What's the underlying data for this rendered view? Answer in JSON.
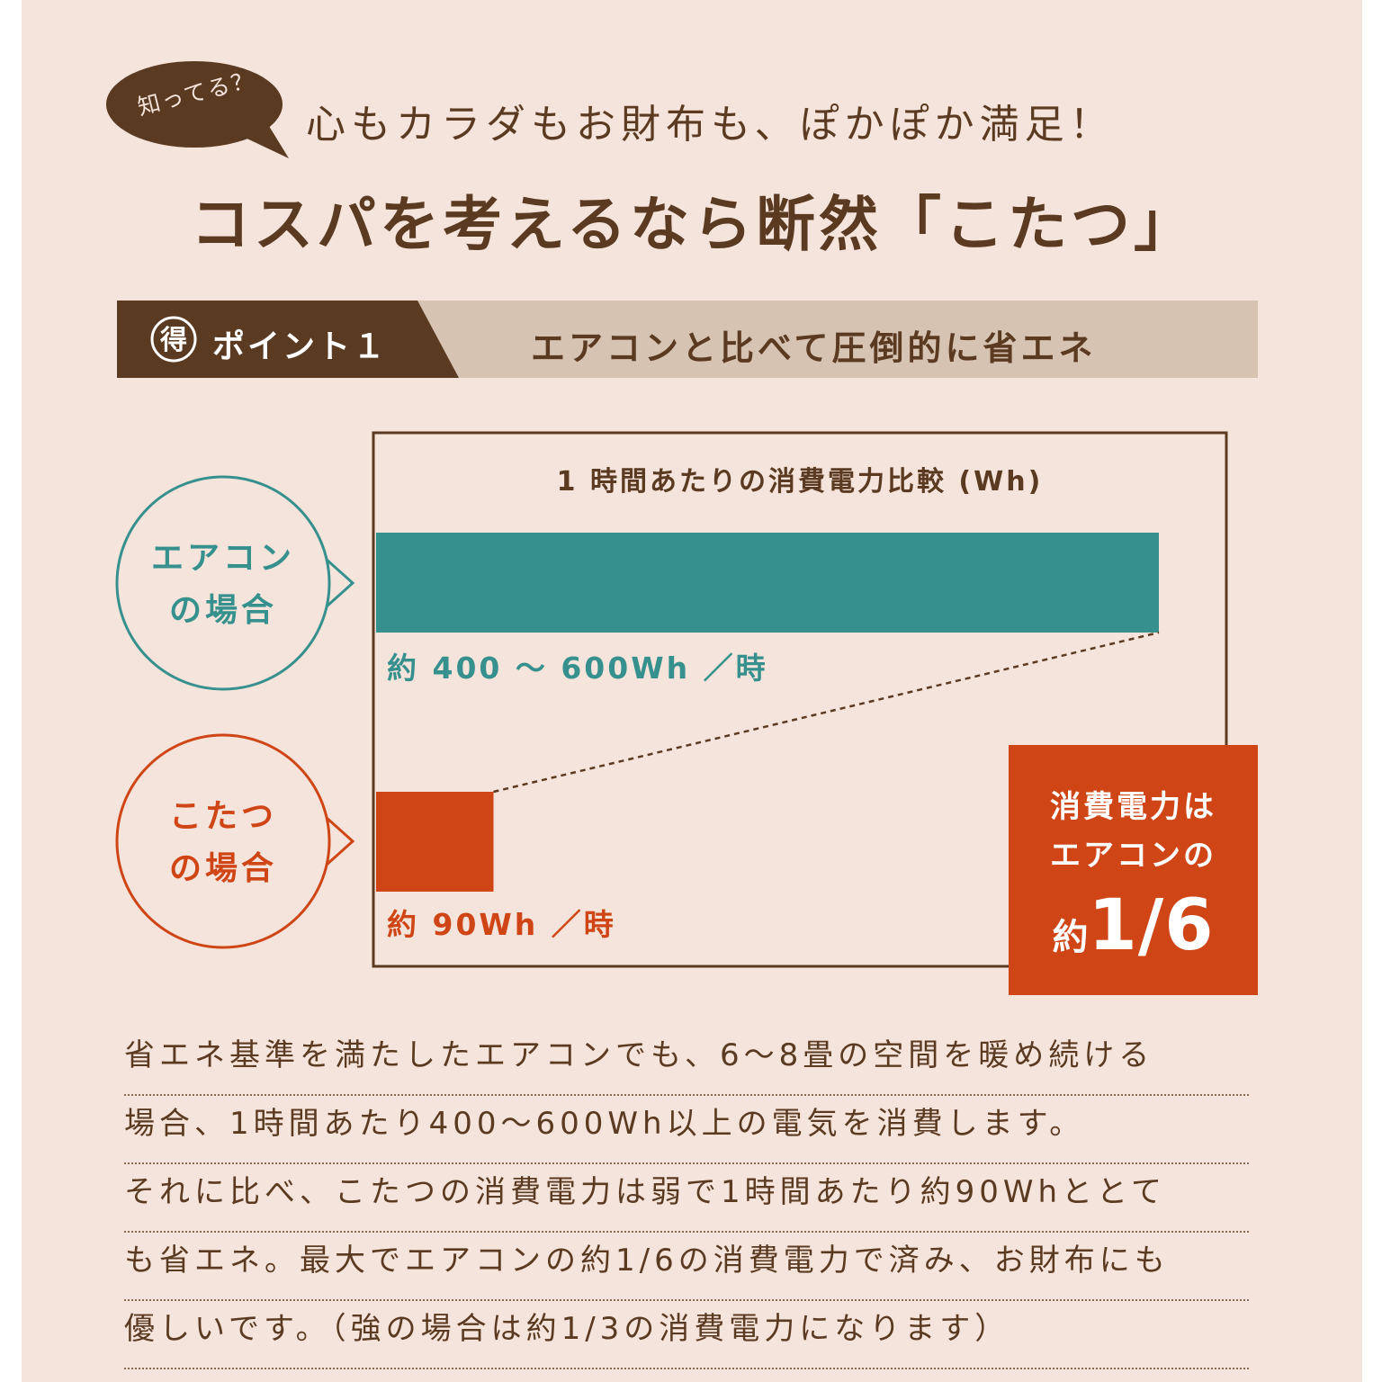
{
  "header": {
    "bubble_text": "知ってる？",
    "tagline": "心もカラダもお財布も、ぽかぽか満足！",
    "headline": "コスパを考えるなら断然「こたつ」"
  },
  "point": {
    "icon_char": "得",
    "label": "ポイント１",
    "title": "エアコンと比べて圧倒的に省エネ"
  },
  "comparison": {
    "aircon_label_1": "エアコン",
    "aircon_label_2": "の場合",
    "kotatsu_label_1": "こたつ",
    "kotatsu_label_2": "の場合",
    "aircon_value": "約 400 ～ 600Wh ／時",
    "kotatsu_value": "約 90Wh ／時"
  },
  "result": {
    "line1": "消費電力は",
    "line2": "エアコンの",
    "prefix": "約",
    "fraction": "1/6"
  },
  "description": {
    "lines": [
      "省エネ基準を満たしたエアコンでも、6～8畳の空間を暖め続ける",
      "場合、1時間あたり400～600Wh以上の電気を消費します。",
      "それに比べ、こたつの消費電力は弱で1時間あたり約90Whととて",
      "も省エネ。最大でエアコンの約1/6の消費電力で済み、お財布にも",
      "優しいです。（強の場合は約1/3の消費電力になります）"
    ]
  },
  "colors": {
    "brown": "#5b3a22",
    "teal": "#36918e",
    "orange": "#cf4516",
    "background": "#f5e4db",
    "banner_light": "#d6c3b1"
  },
  "chart_data": {
    "type": "bar",
    "orientation": "horizontal",
    "title": "1 時間あたりの消費電力比較 (Wh)",
    "categories": [
      "エアコン",
      "こたつ"
    ],
    "values": [
      600,
      90
    ],
    "value_labels": [
      "約 400 ～ 600Wh ／時",
      "約 90Wh ／時"
    ],
    "colors": [
      "#36918e",
      "#cf4516"
    ]
  }
}
